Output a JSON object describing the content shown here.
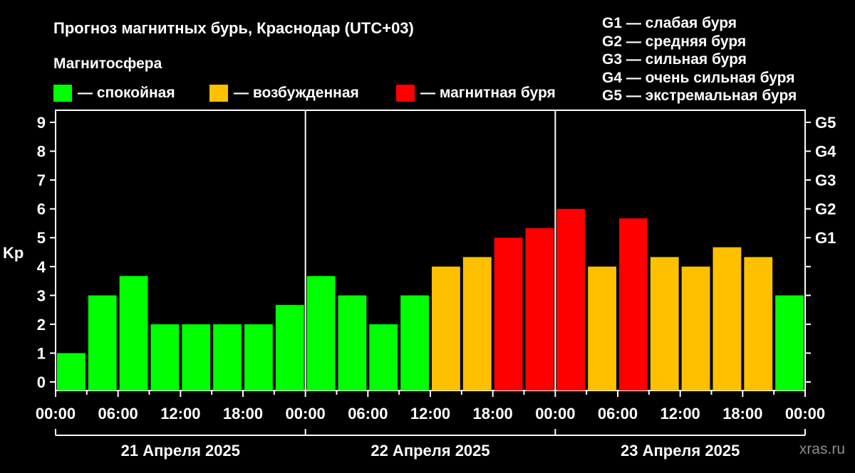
{
  "title": "Прогноз магнитных бурь, Краснодар (UTC+03)",
  "legend": {
    "heading": "Магнитосфера",
    "items": [
      {
        "label": "— спокойная",
        "color": "#00ff00"
      },
      {
        "label": "— возбужденная",
        "color": "#ffc000"
      },
      {
        "label": "— магнитная буря",
        "color": "#ff0000"
      }
    ]
  },
  "g_legend": [
    "G1 — слабая буря",
    "G2 — средняя буря",
    "G3 — сильная буря",
    "G4 — очень сильная буря",
    "G5 — экстремальная буря"
  ],
  "watermark": "xras.ru",
  "chart_data": {
    "type": "bar",
    "ylabel": "Kp",
    "ylim": [
      0,
      9
    ],
    "y_ticks": [
      0,
      1,
      2,
      3,
      4,
      5,
      6,
      7,
      8,
      9
    ],
    "right_axis_ticks": [
      {
        "kp": 5,
        "label": "G1"
      },
      {
        "kp": 6,
        "label": "G2"
      },
      {
        "kp": 7,
        "label": "G3"
      },
      {
        "kp": 8,
        "label": "G4"
      },
      {
        "kp": 9,
        "label": "G5"
      }
    ],
    "x_tick_labels": [
      "00:00",
      "06:00",
      "12:00",
      "18:00",
      "00:00",
      "06:00",
      "12:00",
      "18:00",
      "00:00",
      "06:00",
      "12:00",
      "18:00",
      "00:00"
    ],
    "days": [
      "21 Апреля 2025",
      "22 Апреля 2025",
      "23 Апреля 2025"
    ],
    "bar_interval_hours": 3,
    "values": [
      1.0,
      3.0,
      3.67,
      2.0,
      2.0,
      2.0,
      2.0,
      2.67,
      3.67,
      3.0,
      2.0,
      3.0,
      4.0,
      4.33,
      5.0,
      5.33,
      6.0,
      4.0,
      5.67,
      4.33,
      4.0,
      4.67,
      4.33,
      3.0
    ],
    "level_colors": {
      "quiet": "#00ff00",
      "active": "#ffc000",
      "storm": "#ff0000"
    },
    "grid": false
  }
}
